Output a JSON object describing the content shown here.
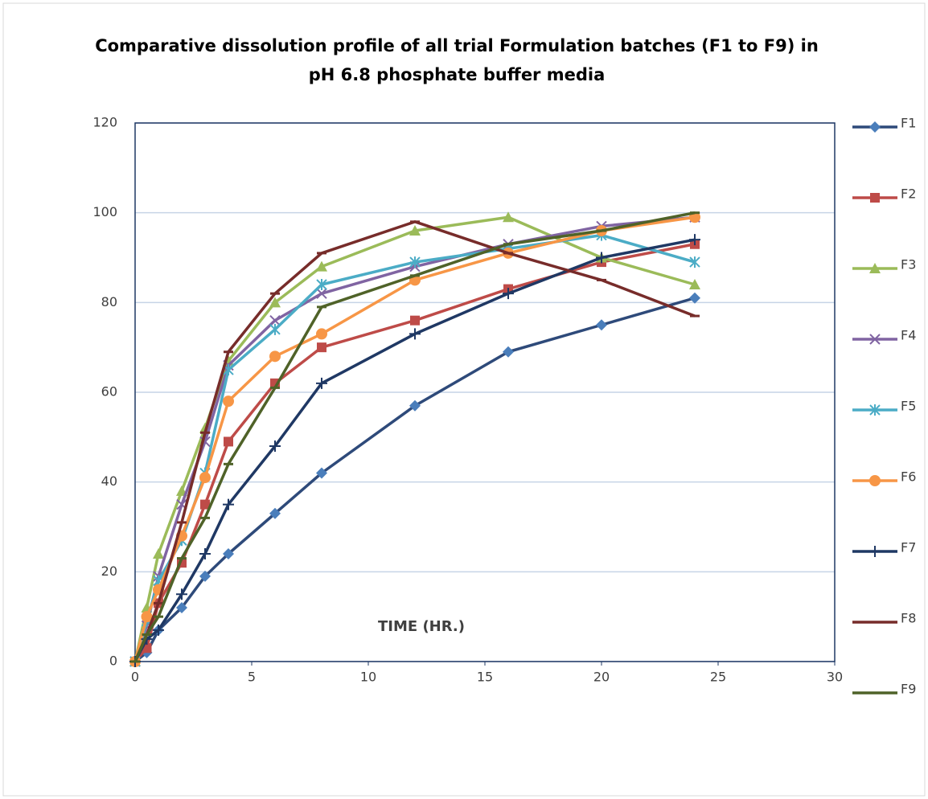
{
  "chart_data": {
    "type": "line",
    "title": [
      "Comparative dissolution profile of all trial Formulation batches (F1 to F9) in",
      "pH 6.8 phosphate buffer media"
    ],
    "x_label": "TIME (HR.)",
    "x": [
      0,
      0.5,
      1,
      2,
      3,
      4,
      6,
      8,
      12,
      16,
      20,
      24
    ],
    "xlim": [
      0,
      30
    ],
    "xticks": [
      0,
      5,
      10,
      15,
      20,
      25,
      30
    ],
    "ylim": [
      0,
      120
    ],
    "yticks": [
      0,
      20,
      40,
      60,
      80,
      100,
      120
    ],
    "grid": true,
    "legend": "right",
    "series": [
      {
        "name": "F1",
        "color": "#2e4a7a",
        "marker": "diamond",
        "marker_color": "#4a7ebb",
        "values": [
          0,
          2,
          7,
          12,
          19,
          24,
          33,
          42,
          57,
          69,
          75,
          81
        ]
      },
      {
        "name": "F2",
        "color": "#be4b48",
        "marker": "square",
        "marker_color": "#be4b48",
        "values": [
          0,
          3,
          13,
          22,
          35,
          49,
          62,
          70,
          76,
          83,
          89,
          93
        ]
      },
      {
        "name": "F3",
        "color": "#9bbb59",
        "marker": "triangle",
        "marker_color": "#9bbb59",
        "values": [
          0,
          12,
          24,
          38,
          52,
          67,
          80,
          88,
          96,
          99,
          90,
          84
        ]
      },
      {
        "name": "F4",
        "color": "#8064a2",
        "marker": "x",
        "marker_color": "#8064a2",
        "values": [
          0,
          8,
          19,
          35,
          49,
          66,
          76,
          82,
          88,
          93,
          97,
          99
        ]
      },
      {
        "name": "F5",
        "color": "#4bacc6",
        "marker": "star",
        "marker_color": "#4bacc6",
        "values": [
          0,
          9,
          18,
          27,
          42,
          65,
          74,
          84,
          89,
          92,
          95,
          89
        ]
      },
      {
        "name": "F6",
        "color": "#f79646",
        "marker": "circle",
        "marker_color": "#f79646",
        "values": [
          0,
          10,
          16,
          28,
          41,
          58,
          68,
          73,
          85,
          91,
          96,
          99
        ]
      },
      {
        "name": "F7",
        "color": "#1f3864",
        "marker": "plus",
        "marker_color": "#1f3864",
        "values": [
          0,
          5,
          7,
          15,
          24,
          35,
          48,
          62,
          73,
          82,
          90,
          94
        ]
      },
      {
        "name": "F8",
        "color": "#772c2a",
        "marker": "dash",
        "marker_color": "#772c2a",
        "values": [
          0,
          6,
          13,
          31,
          51,
          69,
          82,
          91,
          98,
          91,
          85,
          77
        ]
      },
      {
        "name": "F9",
        "color": "#4f6228",
        "marker": "dash",
        "marker_color": "#4f6228",
        "values": [
          0,
          6,
          10,
          23,
          32,
          44,
          61,
          79,
          86,
          93,
          96,
          100
        ]
      }
    ]
  }
}
